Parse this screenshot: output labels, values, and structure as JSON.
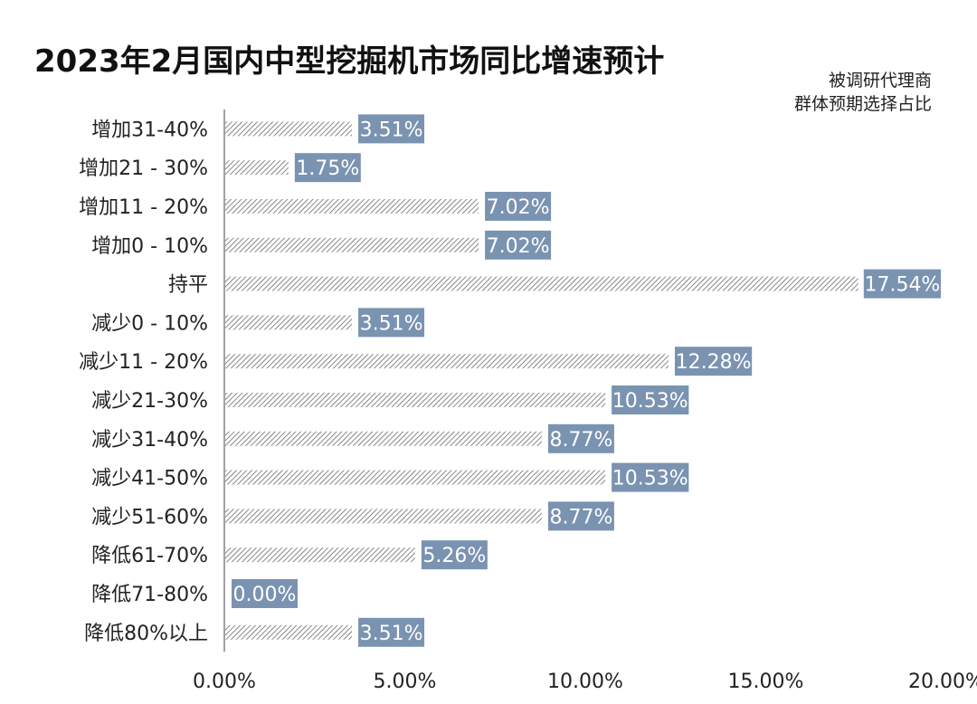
{
  "chart_data": {
    "type": "bar",
    "orientation": "horizontal",
    "title": "2023年2月国内中型挖掘机市场同比增速预计",
    "note": [
      "被调研代理商",
      "群体预期选择占比"
    ],
    "categories": [
      "增加31-40%",
      "增加21 - 30%",
      "增加11 - 20%",
      "增加0 - 10%",
      "持平",
      "减少0 - 10%",
      "减少11 - 20%",
      "减少21-30%",
      "减少31-40%",
      "减少41-50%",
      "减少51-60%",
      "降低61-70%",
      "降低71-80%",
      "降低80%以上"
    ],
    "values": [
      3.51,
      1.75,
      7.02,
      7.02,
      17.54,
      3.51,
      12.28,
      10.53,
      8.77,
      10.53,
      8.77,
      5.26,
      0.0,
      3.51
    ],
    "value_labels": [
      "3.51%",
      "1.75%",
      "7.02%",
      "7.02%",
      "17.54%",
      "3.51%",
      "12.28%",
      "10.53%",
      "8.77%",
      "10.53%",
      "8.77%",
      "5.26%",
      "0.00%",
      "3.51%"
    ],
    "xlim": [
      0,
      20
    ],
    "xticks": [
      0,
      5,
      10,
      15,
      20
    ],
    "xtick_labels": [
      "0.00%",
      "5.00%",
      "10.00%",
      "15.00%",
      "20.00%"
    ],
    "grid": false,
    "legend": "none",
    "colors": {
      "bar_hatch": "#555555",
      "label_bg": "#7a93b1",
      "label_text": "#ffffff",
      "axis": "#444444"
    }
  }
}
